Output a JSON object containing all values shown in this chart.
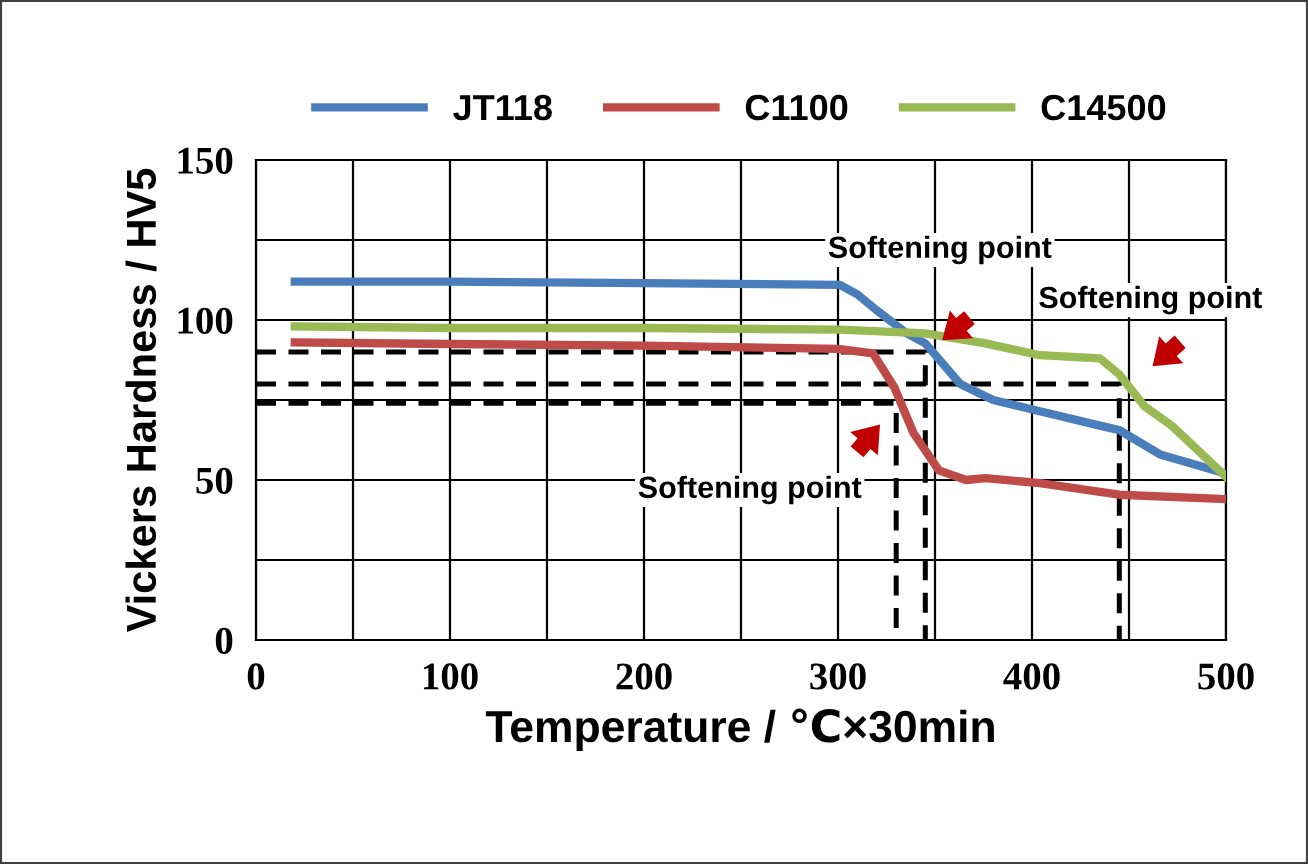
{
  "chart_data": {
    "type": "line",
    "xlabel": "Temperature / ℃×30min",
    "ylabel": "Vickers Hardness / HV5",
    "xlim": [
      0,
      500
    ],
    "xticks": [
      0,
      100,
      200,
      300,
      400,
      500
    ],
    "ylim": [
      0,
      150
    ],
    "yticks": [
      0,
      50,
      100,
      150
    ],
    "grid": true,
    "legend": "top",
    "line_style": "solid",
    "marker": "none",
    "series": [
      {
        "name": "JT118",
        "color": "#4a7ebb",
        "x": [
          20,
          100,
          200,
          301,
          310,
          320,
          335,
          345,
          363,
          380,
          404,
          435,
          445,
          466,
          483,
          500
        ],
        "values": [
          112,
          112,
          111.5,
          111,
          108,
          103,
          96,
          92.7,
          80,
          75,
          71.5,
          67,
          65.6,
          58,
          55,
          52
        ]
      },
      {
        "name": "C1100",
        "color": "#be4b48",
        "x": [
          20,
          100,
          200,
          300,
          318,
          329,
          339,
          352,
          366,
          376,
          404,
          445,
          500
        ],
        "values": [
          93,
          92.5,
          92,
          91,
          89.6,
          79,
          64.6,
          53,
          50,
          50.6,
          49,
          45.4,
          44
        ]
      },
      {
        "name": "C14500",
        "color": "#98b954",
        "x": [
          20,
          100,
          200,
          301,
          345,
          376,
          404,
          435,
          445,
          458,
          472,
          500
        ],
        "values": [
          98,
          97.5,
          97.5,
          97,
          95.8,
          92.7,
          89,
          88,
          83,
          73,
          67,
          51
        ]
      },
      {
        "color": "#000000",
        "line_style": "dashed",
        "x": [
          0,
          345,
          345
        ],
        "values": [
          90,
          90,
          0
        ]
      },
      {
        "color": "#000000",
        "line_style": "dashed",
        "x": [
          0,
          445,
          445
        ],
        "values": [
          80,
          80,
          0
        ]
      },
      {
        "color": "#000000",
        "line_style": "dashed",
        "x": [
          0,
          330,
          330
        ],
        "values": [
          74,
          74,
          0
        ]
      }
    ],
    "annotations": [
      "Softening point",
      "Softening point",
      "Softening point"
    ]
  }
}
